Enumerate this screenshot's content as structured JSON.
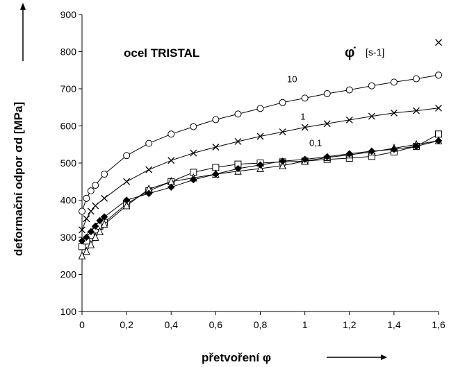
{
  "chart_data": {
    "type": "line",
    "title": "ocel TRISTAL",
    "xlabel": "přetvoření φ",
    "ylabel": "deformační odpor σd [MPa]",
    "legend_title": "φ̇",
    "legend_unit": "[s-1]",
    "xlim": [
      0,
      1.6
    ],
    "ylim": [
      100,
      900
    ],
    "xticks": [
      0,
      0.2,
      0.4,
      0.6,
      0.8,
      1.0,
      1.2,
      1.4,
      1.6
    ],
    "xtick_labels": [
      "0",
      "0,2",
      "0,4",
      "0,6",
      "0,8",
      "1",
      "1,2",
      "1,4",
      "1,6"
    ],
    "yticks": [
      100,
      200,
      300,
      400,
      500,
      600,
      700,
      800,
      900
    ],
    "ytick_labels": [
      "100",
      "200",
      "300",
      "400",
      "500",
      "600",
      "700",
      "800",
      "900"
    ],
    "grid": false,
    "series": [
      {
        "name": "10",
        "marker": "circle",
        "x": [
          0,
          0.02,
          0.04,
          0.06,
          0.1,
          0.2,
          0.3,
          0.4,
          0.5,
          0.6,
          0.7,
          0.8,
          0.9,
          1.0,
          1.1,
          1.2,
          1.3,
          1.4,
          1.5,
          1.6
        ],
        "y": [
          370,
          405,
          425,
          440,
          470,
          520,
          553,
          578,
          598,
          617,
          632,
          647,
          663,
          675,
          687,
          697,
          708,
          718,
          727,
          737
        ]
      },
      {
        "name": "1",
        "marker": "cross",
        "x": [
          0,
          0.02,
          0.04,
          0.06,
          0.1,
          0.2,
          0.3,
          0.4,
          0.5,
          0.6,
          0.7,
          0.8,
          0.9,
          1.0,
          1.1,
          1.2,
          1.3,
          1.4,
          1.5,
          1.6
        ],
        "y": [
          320,
          350,
          370,
          385,
          405,
          450,
          482,
          507,
          527,
          543,
          558,
          572,
          584,
          596,
          606,
          616,
          626,
          635,
          641,
          648
        ]
      },
      {
        "name": "0,1",
        "marker": "square",
        "x": [
          0,
          0.02,
          0.04,
          0.06,
          0.08,
          0.1,
          0.2,
          0.3,
          0.4,
          0.5,
          0.6,
          0.7,
          0.8,
          0.9,
          1.0,
          1.1,
          1.2,
          1.3,
          1.4,
          1.5,
          1.6
        ],
        "y": [
          275,
          290,
          305,
          320,
          330,
          340,
          390,
          425,
          450,
          475,
          488,
          497,
          500,
          503,
          505,
          510,
          513,
          518,
          530,
          545,
          578
        ]
      },
      {
        "name": "",
        "marker": "triangle",
        "x": [
          0,
          0.02,
          0.04,
          0.06,
          0.08,
          0.1,
          0.2,
          0.3,
          0.4,
          0.5,
          0.6,
          0.7,
          0.8,
          0.9,
          1.0,
          1.1,
          1.2,
          1.3,
          1.4,
          1.5,
          1.6
        ],
        "y": [
          250,
          262,
          280,
          300,
          315,
          335,
          385,
          430,
          450,
          460,
          470,
          478,
          485,
          493,
          505,
          515,
          522,
          530,
          540,
          550,
          560
        ]
      },
      {
        "name": "",
        "marker": "diamond",
        "x": [
          0,
          0.02,
          0.04,
          0.06,
          0.08,
          0.1,
          0.2,
          0.3,
          0.4,
          0.5,
          0.6,
          0.7,
          0.8,
          0.9,
          1.0,
          1.1,
          1.2,
          1.3,
          1.4,
          1.5,
          1.6
        ],
        "y": [
          290,
          300,
          315,
          330,
          345,
          355,
          400,
          418,
          435,
          455,
          470,
          485,
          495,
          505,
          510,
          517,
          525,
          532,
          537,
          545,
          560
        ]
      }
    ],
    "extra_point": {
      "marker": "cross",
      "x": 1.6,
      "y": 825
    }
  }
}
